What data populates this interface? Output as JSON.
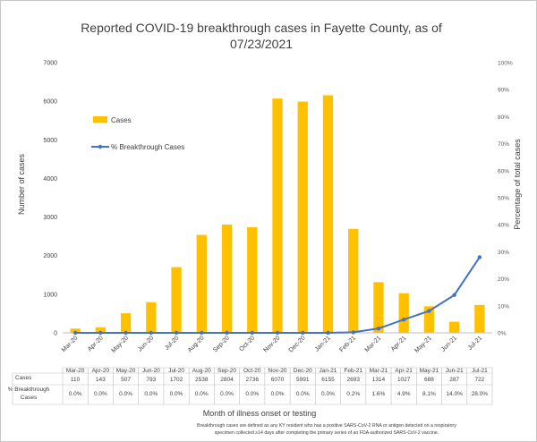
{
  "chart_data": {
    "type": "bar",
    "title_line1": "Reported COVID-19 breakthrough cases in Fayette County, as of",
    "title_line2": "07/23/2021",
    "xlabel": "Month of illness onset or testing",
    "ylabel": "Number of cases",
    "ylabel_right": "Percentage of total cases",
    "ylim": [
      0,
      7000
    ],
    "y_ticks": [
      "0",
      "1000",
      "2000",
      "3000",
      "4000",
      "5000",
      "6000",
      "7000"
    ],
    "ylim_right": [
      0,
      100
    ],
    "y_ticks_right": [
      "0%",
      "10%",
      "20%",
      "30%",
      "40%",
      "50%",
      "60%",
      "70%",
      "80%",
      "90%",
      "100%"
    ],
    "categories": [
      "Mar-20",
      "Apr-20",
      "May-20",
      "Jun-20",
      "Jul-20",
      "Aug-20",
      "Sep-20",
      "Oct-20",
      "Nov-20",
      "Dec-20",
      "Jan-21",
      "Feb-21",
      "Mar-21",
      "Apr-21",
      "May-21",
      "Jun-21",
      "Jul-21"
    ],
    "series": [
      {
        "name": "Cases",
        "type": "bar",
        "color": "#FFC000",
        "values": [
          110,
          143,
          507,
          793,
          1702,
          2538,
          2804,
          2736,
          6070,
          5991,
          6155,
          2693,
          1314,
          1027,
          688,
          287,
          722
        ],
        "table_labels": [
          "110",
          "143",
          "507",
          "793",
          "1702",
          "2538",
          "2804",
          "2736",
          "6070",
          "5991",
          "6155",
          "2693",
          "1314",
          "1027",
          "688",
          "287",
          "722"
        ]
      },
      {
        "name": "% Breakthrough Cases",
        "type": "line",
        "axis": "right",
        "color": "#4472C4",
        "values": [
          0.0,
          0.0,
          0.0,
          0.0,
          0.0,
          0.0,
          0.0,
          0.0,
          0.0,
          0.0,
          0.0,
          0.2,
          1.6,
          4.9,
          8.1,
          14.0,
          28.0
        ],
        "table_labels": [
          "0.0%",
          "0.0%",
          "0.0%",
          "0.0%",
          "0.0%",
          "0.0%",
          "0.0%",
          "0.0%",
          "0.0%",
          "0.0%",
          "0.0%",
          "0.2%",
          "1.6%",
          "4.9%",
          "8.1%",
          "14.0%",
          "28.0%"
        ]
      }
    ],
    "table_row_labels": [
      "Cases",
      "% Breakthrough",
      "Cases"
    ],
    "legend_position": "top-left",
    "grid": false,
    "footnote_line1": "Breakthrough cases are defined as any KY resident who has a positive SARS-CoV-2 RNA or antigen detected on a respiratory",
    "footnote_line2": "specimen collected ≥14 days after completing the primary series of an FDA-authorized SARS-CoV-2 vaccine."
  }
}
